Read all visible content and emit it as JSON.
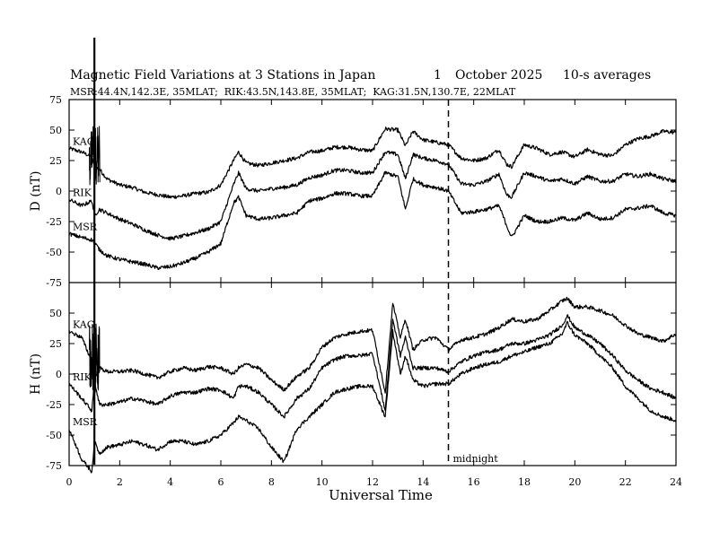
{
  "chart_data": {
    "type": "line",
    "title": "Magnetic Field Variations at 3 Stations in Japan",
    "date_day": "1",
    "date_month_year": "October 2025",
    "averaging": "10-s averages",
    "subtitle": "MSR:44.4N,142.3E, 35MLAT;  RIK:43.5N,143.8E, 35MLAT;  KAG:31.5N,130.7E, 22MLAT",
    "xlabel": "Universal Time",
    "xlim": [
      0,
      24
    ],
    "xticks": [
      "0",
      "2",
      "4",
      "6",
      "8",
      "10",
      "12",
      "14",
      "16",
      "18",
      "20",
      "22",
      "24"
    ],
    "midnight_ut": 15,
    "midnight_label": "midnight",
    "panels": [
      {
        "component": "D",
        "ylabel": "D (nT)",
        "ylim": [
          -75,
          75
        ],
        "yticks": [
          "75",
          "50",
          "25",
          "0",
          "-25",
          "-50",
          "-75"
        ],
        "series": [
          {
            "name": "KAG",
            "x": [
              0,
              0.5,
              0.9,
              1.0,
              1.2,
              1.5,
              2,
              2.5,
              3,
              3.5,
              4,
              4.5,
              5,
              5.5,
              6,
              6.5,
              6.7,
              7,
              7.5,
              8,
              8.5,
              9,
              9.5,
              10,
              10.5,
              11,
              11.5,
              12,
              12.5,
              13,
              13.3,
              13.6,
              14,
              14.5,
              15,
              15.5,
              16,
              16.5,
              17,
              17.3,
              17.5,
              18,
              18.5,
              19,
              19.5,
              20,
              20.5,
              21,
              21.5,
              22,
              22.5,
              23,
              23.5,
              24
            ],
            "values": [
              35,
              32,
              28,
              20,
              18,
              10,
              5,
              3,
              -1,
              -3,
              -5,
              -4,
              -2,
              -1,
              5,
              25,
              32,
              23,
              21,
              23,
              25,
              27,
              32,
              33,
              36,
              36,
              34,
              33,
              51,
              50,
              37,
              49,
              42,
              40,
              38,
              27,
              25,
              27,
              34,
              22,
              20,
              38,
              35,
              30,
              32,
              28,
              34,
              30,
              29,
              38,
              43,
              45,
              49,
              48
            ]
          },
          {
            "name": "RIK",
            "x": [
              0,
              0.5,
              0.9,
              1.0,
              1.2,
              1.5,
              2,
              2.5,
              3,
              3.5,
              4,
              4.5,
              5,
              5.5,
              6,
              6.5,
              6.7,
              7,
              7.5,
              8,
              8.5,
              9,
              9.5,
              10,
              10.5,
              11,
              11.5,
              12,
              12.5,
              13,
              13.3,
              13.6,
              14,
              14.5,
              15,
              15.5,
              16,
              16.5,
              17,
              17.3,
              17.5,
              18,
              18.5,
              19,
              19.5,
              20,
              20.5,
              21,
              21.5,
              22,
              22.5,
              23,
              23.5,
              24
            ],
            "values": [
              -7,
              -12,
              -8,
              -20,
              -15,
              -18,
              -23,
              -27,
              -32,
              -36,
              -39,
              -37,
              -34,
              -31,
              -25,
              5,
              15,
              2,
              0,
              2,
              3,
              5,
              11,
              13,
              17,
              17,
              15,
              15,
              32,
              30,
              10,
              30,
              27,
              25,
              22,
              6,
              5,
              8,
              14,
              -3,
              -5,
              15,
              12,
              8,
              10,
              6,
              12,
              8,
              8,
              14,
              12,
              14,
              10,
              8
            ]
          },
          {
            "name": "MSR",
            "x": [
              0,
              0.5,
              0.9,
              1.0,
              1.2,
              1.5,
              2,
              2.5,
              3,
              3.5,
              4,
              4.5,
              5,
              5.5,
              6,
              6.5,
              6.7,
              7,
              7.5,
              8,
              8.5,
              9,
              9.5,
              10,
              10.5,
              11,
              11.5,
              12,
              12.5,
              13,
              13.3,
              13.6,
              14,
              14.5,
              15,
              15.5,
              16,
              16.5,
              17,
              17.3,
              17.5,
              18,
              18.5,
              19,
              19.5,
              20,
              20.5,
              21,
              21.5,
              22,
              22.5,
              23,
              23.5,
              24
            ],
            "values": [
              -35,
              -38,
              -40,
              -42,
              -48,
              -53,
              -56,
              -58,
              -60,
              -63,
              -62,
              -59,
              -55,
              -50,
              -43,
              -10,
              -5,
              -20,
              -23,
              -22,
              -20,
              -18,
              -8,
              -6,
              -2,
              -2,
              -4,
              -4,
              15,
              12,
              -15,
              10,
              5,
              3,
              0,
              -18,
              -17,
              -15,
              -12,
              -28,
              -38,
              -20,
              -25,
              -25,
              -22,
              -24,
              -18,
              -23,
              -22,
              -15,
              -14,
              -12,
              -18,
              -20
            ]
          }
        ]
      },
      {
        "component": "H",
        "ylabel": "H (nT)",
        "ylim": [
          -75,
          75
        ],
        "yticks": [
          "75",
          "50",
          "25",
          "0",
          "-25",
          "-50",
          "-75"
        ],
        "series": [
          {
            "name": "KAG",
            "x": [
              0,
              0.5,
              0.9,
              1.0,
              1.2,
              1.5,
              2,
              2.5,
              3,
              3.5,
              4,
              4.5,
              5,
              5.5,
              6,
              6.5,
              6.7,
              7,
              7.5,
              8,
              8.5,
              9,
              9.5,
              10,
              10.5,
              11,
              11.5,
              12,
              12.5,
              12.8,
              13.1,
              13.3,
              13.6,
              14,
              14.5,
              15,
              15.5,
              16,
              16.5,
              17,
              17.5,
              18,
              18.5,
              19,
              19.5,
              19.7,
              20,
              20.5,
              21,
              21.5,
              22,
              22.5,
              23,
              23.5,
              24
            ],
            "values": [
              35,
              30,
              10,
              -5,
              5,
              2,
              2,
              3,
              0,
              -3,
              2,
              5,
              3,
              6,
              5,
              0,
              5,
              8,
              5,
              -5,
              -13,
              -2,
              5,
              22,
              30,
              33,
              35,
              36,
              -15,
              58,
              30,
              45,
              20,
              28,
              30,
              20,
              28,
              30,
              33,
              38,
              45,
              43,
              45,
              52,
              60,
              62,
              55,
              55,
              52,
              48,
              40,
              33,
              30,
              27,
              33
            ]
          },
          {
            "name": "RIK",
            "x": [
              0,
              0.5,
              0.9,
              1.0,
              1.2,
              1.5,
              2,
              2.5,
              3,
              3.5,
              4,
              4.5,
              5,
              5.5,
              6,
              6.5,
              6.7,
              7,
              7.5,
              8,
              8.5,
              9,
              9.5,
              10,
              10.5,
              11,
              11.5,
              12,
              12.5,
              12.8,
              13.1,
              13.3,
              13.6,
              14,
              14.5,
              15,
              15.5,
              16,
              16.5,
              17,
              17.5,
              18,
              18.5,
              19,
              19.5,
              19.7,
              20,
              20.5,
              21,
              21.5,
              22,
              22.5,
              23,
              23.5,
              24
            ],
            "values": [
              -8,
              -20,
              -30,
              -5,
              -25,
              -25,
              -23,
              -20,
              -22,
              -25,
              -18,
              -15,
              -15,
              -12,
              -13,
              -20,
              -10,
              -10,
              -15,
              -25,
              -35,
              -20,
              -12,
              5,
              12,
              15,
              15,
              17,
              -30,
              45,
              15,
              30,
              5,
              5,
              5,
              2,
              10,
              15,
              18,
              20,
              25,
              25,
              28,
              32,
              40,
              48,
              38,
              32,
              25,
              15,
              3,
              -5,
              -12,
              -15,
              -20
            ]
          },
          {
            "name": "MSR",
            "x": [
              0,
              0.5,
              0.9,
              1.0,
              1.2,
              1.5,
              2,
              2.5,
              3,
              3.5,
              4,
              4.5,
              5,
              5.5,
              6,
              6.5,
              6.7,
              7,
              7.5,
              8,
              8.5,
              9,
              9.5,
              10,
              10.5,
              11,
              11.5,
              12,
              12.5,
              12.8,
              13.1,
              13.3,
              13.6,
              14,
              14.5,
              15,
              15.5,
              16,
              16.5,
              17,
              17.5,
              18,
              18.5,
              19,
              19.5,
              19.7,
              20,
              20.5,
              21,
              21.5,
              22,
              22.5,
              23,
              23.5,
              24
            ],
            "values": [
              -45,
              -70,
              -80,
              -55,
              -65,
              -60,
              -58,
              -55,
              -58,
              -62,
              -55,
              -55,
              -58,
              -55,
              -50,
              -40,
              -35,
              -38,
              -45,
              -60,
              -72,
              -45,
              -35,
              -25,
              -15,
              -12,
              -10,
              -10,
              -35,
              35,
              0,
              15,
              -5,
              -10,
              -8,
              -8,
              0,
              5,
              8,
              10,
              15,
              18,
              22,
              25,
              33,
              42,
              32,
              25,
              15,
              5,
              -10,
              -20,
              -30,
              -35,
              -38
            ]
          }
        ]
      }
    ]
  }
}
